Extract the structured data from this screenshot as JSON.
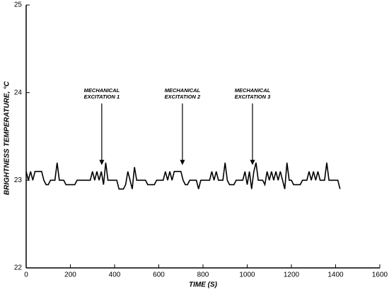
{
  "chart_data": {
    "type": "line",
    "xlabel": "TIME (S)",
    "ylabel": "BRIGHTNESS TEMPERATURE, °C",
    "x": [
      0,
      10,
      20,
      30,
      40,
      50,
      60,
      70,
      80,
      90,
      100,
      110,
      120,
      130,
      140,
      150,
      160,
      170,
      180,
      190,
      200,
      210,
      220,
      230,
      240,
      250,
      260,
      270,
      280,
      290,
      300,
      310,
      320,
      330,
      340,
      350,
      360,
      370,
      380,
      390,
      400,
      410,
      420,
      430,
      440,
      450,
      460,
      470,
      480,
      490,
      500,
      510,
      520,
      530,
      540,
      550,
      560,
      570,
      580,
      590,
      600,
      610,
      620,
      630,
      640,
      650,
      660,
      670,
      680,
      690,
      700,
      710,
      720,
      730,
      740,
      750,
      760,
      770,
      780,
      790,
      800,
      810,
      820,
      830,
      840,
      850,
      860,
      870,
      880,
      890,
      900,
      910,
      920,
      930,
      940,
      950,
      960,
      970,
      980,
      990,
      1000,
      1010,
      1020,
      1030,
      1040,
      1050,
      1060,
      1070,
      1080,
      1090,
      1100,
      1110,
      1120,
      1130,
      1140,
      1150,
      1160,
      1170,
      1180,
      1190,
      1200,
      1210,
      1220,
      1230,
      1240,
      1250,
      1260,
      1270,
      1280,
      1290,
      1300,
      1310,
      1320,
      1330,
      1340,
      1350,
      1360,
      1370,
      1380,
      1390,
      1400,
      1410,
      1420
    ],
    "series": [
      {
        "name": "Brightness temperature",
        "color": "#000000",
        "values": [
          23.1,
          23.0,
          23.1,
          23.0,
          23.1,
          23.1,
          23.1,
          23.1,
          23.0,
          22.95,
          22.95,
          23.0,
          23.0,
          23.0,
          23.2,
          23.0,
          23.0,
          23.0,
          22.95,
          22.95,
          22.95,
          22.95,
          22.95,
          23.0,
          23.0,
          23.0,
          23.0,
          23.0,
          23.0,
          23.0,
          23.1,
          23.0,
          23.1,
          23.0,
          23.1,
          22.95,
          23.2,
          23.0,
          23.0,
          23.0,
          23.0,
          23.0,
          22.9,
          22.9,
          22.9,
          22.95,
          23.1,
          23.0,
          22.9,
          23.15,
          23.0,
          23.0,
          23.0,
          23.0,
          23.0,
          22.95,
          22.95,
          22.95,
          22.95,
          23.0,
          23.0,
          23.0,
          23.0,
          23.1,
          23.0,
          23.1,
          23.0,
          23.1,
          23.1,
          23.1,
          23.1,
          23.0,
          22.95,
          22.95,
          23.0,
          23.0,
          23.0,
          23.0,
          22.9,
          23.0,
          23.0,
          23.0,
          23.0,
          23.0,
          23.1,
          23.0,
          23.1,
          23.0,
          23.0,
          23.0,
          23.2,
          23.0,
          22.95,
          22.95,
          22.95,
          23.0,
          23.0,
          23.0,
          23.0,
          23.1,
          22.95,
          23.1,
          22.9,
          23.1,
          23.2,
          23.0,
          23.0,
          23.0,
          22.95,
          23.1,
          23.0,
          23.1,
          23.0,
          23.1,
          23.0,
          23.1,
          23.0,
          22.9,
          23.2,
          23.0,
          23.0,
          22.95,
          22.95,
          22.95,
          22.95,
          23.0,
          23.0,
          23.0,
          23.1,
          23.0,
          23.1,
          23.0,
          23.1,
          23.0,
          23.0,
          23.0,
          23.2,
          23.0,
          23.0,
          23.0,
          23.0,
          23.0,
          22.9
        ]
      }
    ],
    "xlim": [
      0,
      1600
    ],
    "xticks": [
      0,
      200,
      400,
      600,
      800,
      1000,
      1200,
      1400,
      1600
    ],
    "ylim": [
      22,
      25
    ],
    "yticks": [
      22,
      23,
      24,
      25
    ],
    "annotations": [
      {
        "text": [
          "MECHANICAL",
          "EXCITATION 1"
        ],
        "x": 342,
        "y": 23.18
      },
      {
        "text": [
          "MECHANICAL",
          "EXCITATION 2"
        ],
        "x": 707,
        "y": 23.18
      },
      {
        "text": [
          "MECHANICAL",
          "EXCITATION 3"
        ],
        "x": 1024,
        "y": 23.18
      }
    ]
  }
}
